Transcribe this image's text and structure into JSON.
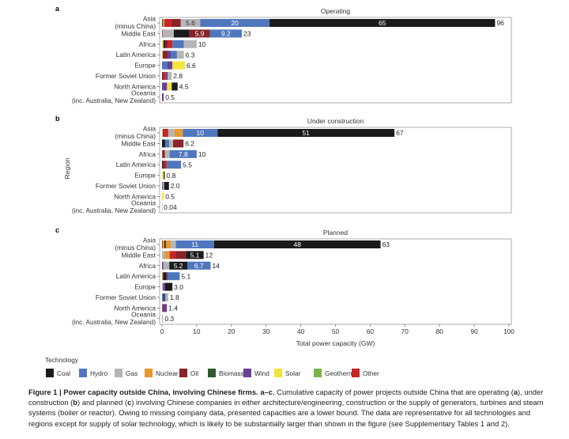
{
  "colors": {
    "Coal": "#1b1b1b",
    "Hydro": "#5077be",
    "Gas": "#b5b5b5",
    "Nuclear": "#e5992f",
    "Oil": "#8a2428",
    "Biomass": "#2f5a2f",
    "Wind": "#6b3f98",
    "Solar": "#f1e53a",
    "Geothermal": "#7cb64a",
    "Other": "#cc2329"
  },
  "chart_data": [
    {
      "type": "bar",
      "orientation": "horizontal-stacked",
      "panel_letter": "a",
      "title": "Operating",
      "categories": [
        [
          "Asia",
          "(minus China)"
        ],
        [
          "Middle East"
        ],
        [
          "Africa"
        ],
        [
          "Latin America"
        ],
        [
          "Europe"
        ],
        [
          "Former Soviet Union"
        ],
        [
          "North America"
        ],
        [
          "Oceania",
          "(inc. Australia, New Zealand)"
        ]
      ],
      "totals": [
        "96",
        "23",
        "10",
        "6.3",
        "6.6",
        "2.8",
        "4.5",
        "0.5"
      ],
      "stacks": [
        [
          {
            "tech": "Biomass",
            "value": 0.3
          },
          {
            "tech": "Nuclear",
            "value": 0.4
          },
          {
            "tech": "Other",
            "value": 2.0
          },
          {
            "tech": "Oil",
            "value": 2.7
          },
          {
            "tech": "Gas",
            "value": 5.6,
            "label": "5.6"
          },
          {
            "tech": "Hydro",
            "value": 20,
            "label": "20"
          },
          {
            "tech": "Coal",
            "value": 65,
            "label": "65"
          }
        ],
        [
          {
            "tech": "Other",
            "value": 0.2
          },
          {
            "tech": "Gas",
            "value": 3.2
          },
          {
            "tech": "Coal",
            "value": 4.5
          },
          {
            "tech": "Oil",
            "value": 5.9,
            "label": "5.9"
          },
          {
            "tech": "Hydro",
            "value": 9.2,
            "label": "9.2"
          }
        ],
        [
          {
            "tech": "Solar",
            "value": 0.4
          },
          {
            "tech": "Coal",
            "value": 0.5
          },
          {
            "tech": "Oil",
            "value": 0.8
          },
          {
            "tech": "Other",
            "value": 1.3
          },
          {
            "tech": "Hydro",
            "value": 3.3
          },
          {
            "tech": "Gas",
            "value": 3.7
          }
        ],
        [
          {
            "tech": "Solar",
            "value": 0.2
          },
          {
            "tech": "Oil",
            "value": 1.4
          },
          {
            "tech": "Wind",
            "value": 1.0
          },
          {
            "tech": "Hydro",
            "value": 1.7
          },
          {
            "tech": "Gas",
            "value": 2.0
          }
        ],
        [
          {
            "tech": "Hydro",
            "value": 1.5
          },
          {
            "tech": "Wind",
            "value": 1.5
          },
          {
            "tech": "Solar",
            "value": 3.6
          }
        ],
        [
          {
            "tech": "Oil",
            "value": 0.6
          },
          {
            "tech": "Other",
            "value": 0.5
          },
          {
            "tech": "Wind",
            "value": 0.5
          },
          {
            "tech": "Gas",
            "value": 1.2
          }
        ],
        [
          {
            "tech": "Wind",
            "value": 1.4
          },
          {
            "tech": "Gas",
            "value": 0.2
          },
          {
            "tech": "Solar",
            "value": 1.2
          },
          {
            "tech": "Coal",
            "value": 1.7
          }
        ],
        [
          {
            "tech": "Wind",
            "value": 0.5
          }
        ]
      ],
      "xlim": [
        0,
        100
      ]
    },
    {
      "type": "bar",
      "orientation": "horizontal-stacked",
      "panel_letter": "b",
      "title": "Under construction",
      "ylabel": "Region",
      "categories": [
        [
          "Asia",
          "(minus China)"
        ],
        [
          "Middle East"
        ],
        [
          "Africa"
        ],
        [
          "Latin America"
        ],
        [
          "Europe"
        ],
        [
          "Former Soviet Union"
        ],
        [
          "North America"
        ],
        [
          "Oceania",
          "(inc. Australia, New Zealand)"
        ]
      ],
      "totals": [
        "67",
        "6.2",
        "10",
        "5.5",
        "0.8",
        "2.0",
        "0.5",
        "0.04"
      ],
      "stacks": [
        [
          {
            "tech": "Solar",
            "value": 0.2
          },
          {
            "tech": "Oil",
            "value": 0.4
          },
          {
            "tech": "Other",
            "value": 1.2
          },
          {
            "tech": "Gas",
            "value": 1.8
          },
          {
            "tech": "Nuclear",
            "value": 2.4
          },
          {
            "tech": "Hydro",
            "value": 10,
            "label": "10"
          },
          {
            "tech": "Coal",
            "value": 51,
            "label": "51"
          }
        ],
        [
          {
            "tech": "Coal",
            "value": 0.9
          },
          {
            "tech": "Hydro",
            "value": 1.2
          },
          {
            "tech": "Gas",
            "value": 1.1
          },
          {
            "tech": "Oil",
            "value": 3.0
          }
        ],
        [
          {
            "tech": "Other",
            "value": 0.2
          },
          {
            "tech": "Oil",
            "value": 0.6
          },
          {
            "tech": "Gas",
            "value": 1.4
          },
          {
            "tech": "Hydro",
            "value": 7.8,
            "label": "7.8"
          }
        ],
        [
          {
            "tech": "Coal",
            "value": 0.3
          },
          {
            "tech": "Oil",
            "value": 0.5
          },
          {
            "tech": "Other",
            "value": 0.6
          },
          {
            "tech": "Hydro",
            "value": 4.1
          }
        ],
        [
          {
            "tech": "Solar",
            "value": 0.5
          },
          {
            "tech": "Coal",
            "value": 0.3
          }
        ],
        [
          {
            "tech": "Wind",
            "value": 0.2
          },
          {
            "tech": "Gas",
            "value": 0.4
          },
          {
            "tech": "Coal",
            "value": 1.4
          }
        ],
        [
          {
            "tech": "Solar",
            "value": 0.5
          }
        ],
        [
          {
            "tech": "Gas",
            "value": 0.04
          }
        ]
      ],
      "xlim": [
        0,
        100
      ]
    },
    {
      "type": "bar",
      "orientation": "horizontal-stacked",
      "panel_letter": "c",
      "title": "Planned",
      "xlabel": "Total power capacity (GW)",
      "xticks": [
        "0",
        "10",
        "20",
        "30",
        "40",
        "50",
        "60",
        "70",
        "80",
        "90",
        "100"
      ],
      "categories": [
        [
          "Asia",
          "(minus China)"
        ],
        [
          "Middle East"
        ],
        [
          "Africa"
        ],
        [
          "Latin America"
        ],
        [
          "Europe"
        ],
        [
          "Former Soviet Union"
        ],
        [
          "North America"
        ],
        [
          "Oceania",
          "(inc. Australia, New Zealand)"
        ]
      ],
      "totals": [
        "63",
        "12",
        "14",
        "5.1",
        "3.0",
        "1.8",
        "1.4",
        "0.3"
      ],
      "stacks": [
        [
          {
            "tech": "Oil",
            "value": 0.2
          },
          {
            "tech": "Nuclear",
            "value": 0.5
          },
          {
            "tech": "Coal",
            "value": 0.4
          },
          {
            "tech": "Nuclear",
            "value": 1.4
          },
          {
            "tech": "Gas",
            "value": 1.5
          },
          {
            "tech": "Hydro",
            "value": 11,
            "label": "11"
          },
          {
            "tech": "Coal",
            "value": 48,
            "label": "48"
          }
        ],
        [
          {
            "tech": "Gas",
            "value": 0.8
          },
          {
            "tech": "Nuclear",
            "value": 1.4
          },
          {
            "tech": "Other",
            "value": 1.7
          },
          {
            "tech": "Oil",
            "value": 3.0
          },
          {
            "tech": "Coal",
            "value": 5.1,
            "label": "5.1"
          }
        ],
        [
          {
            "tech": "Wind",
            "value": 0.4
          },
          {
            "tech": "Gas",
            "value": 1.7
          },
          {
            "tech": "Coal",
            "value": 5.2,
            "label": "5.2"
          },
          {
            "tech": "Hydro",
            "value": 6.7,
            "label": "6.7"
          }
        ],
        [
          {
            "tech": "Nuclear",
            "value": 0.3
          },
          {
            "tech": "Coal",
            "value": 1.0
          },
          {
            "tech": "Wind",
            "value": 0.4
          },
          {
            "tech": "Hydro",
            "value": 3.4
          }
        ],
        [
          {
            "tech": "Gas",
            "value": 0.3
          },
          {
            "tech": "Wind",
            "value": 0.6
          },
          {
            "tech": "Coal",
            "value": 2.1
          }
        ],
        [
          {
            "tech": "Hydro",
            "value": 0.4
          },
          {
            "tech": "Coal",
            "value": 0.3
          },
          {
            "tech": "Hydro",
            "value": 0.4
          },
          {
            "tech": "Gas",
            "value": 0.7
          }
        ],
        [
          {
            "tech": "Other",
            "value": 0.2
          },
          {
            "tech": "Wind",
            "value": 1.2
          }
        ],
        [
          {
            "tech": "Gas",
            "value": 0.3
          }
        ]
      ],
      "xlim": [
        0,
        100
      ]
    }
  ],
  "legend": {
    "title": "Technology",
    "items": [
      "Coal",
      "Hydro",
      "Gas",
      "Nuclear",
      "Oil",
      "Biomass",
      "Wind",
      "Solar",
      "Geothermal",
      "Other"
    ]
  },
  "caption": {
    "lead": "Figure 1 | Power capacity outside China, involving Chinese firms. a–c",
    "text1": ", Cumulative capacity of power projects outside China that are operating (",
    "a": "a",
    "text2": "), under construction (",
    "b": "b",
    "text3": ") and planned (",
    "c": "c",
    "text4": ") involving Chinese companies in either architecture/engineering, construction or the supply of generators, turbines and steam systems (boiler or reactor). Owing to missing company data, presented capacities are a lower bound. The data are representative for all technologies and regions except for supply of solar technology, which is likely to be substantially larger than shown in the figure (see Supplementary Tables 1 and 2)."
  }
}
